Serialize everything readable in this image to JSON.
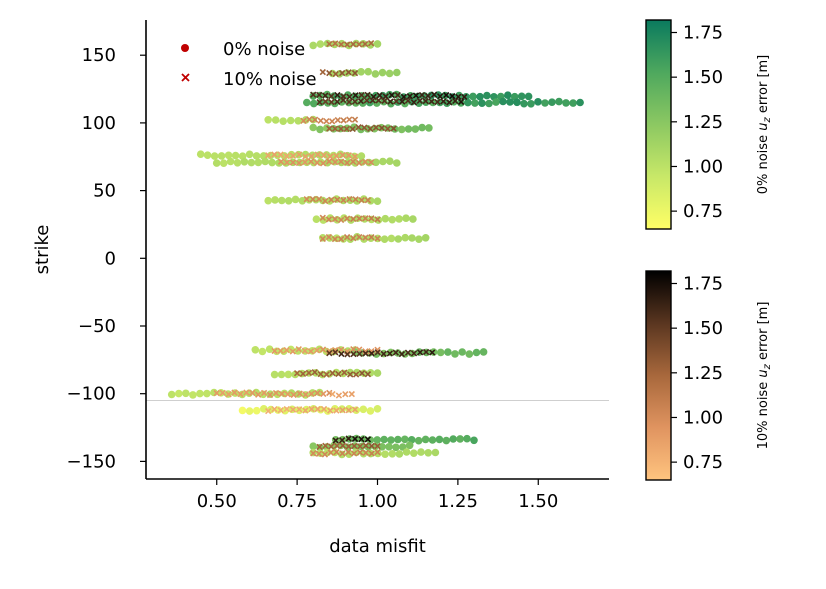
{
  "chart_data": {
    "type": "scatter",
    "xlabel": "data misfit",
    "ylabel": "strike",
    "xlim": [
      0.28,
      1.72
    ],
    "ylim": [
      -163,
      176
    ],
    "xticks": [
      0.5,
      0.75,
      1.0,
      1.25,
      1.5
    ],
    "xtick_labels": [
      "0.50",
      "0.75",
      "1.00",
      "1.25",
      "1.50"
    ],
    "yticks": [
      -150,
      -100,
      -50,
      0,
      50,
      100,
      150
    ],
    "ytick_labels": [
      "−150",
      "−100",
      "−50",
      "0",
      "50",
      "100",
      "150"
    ],
    "reference_line_y": -105,
    "grid": false,
    "legend": {
      "placement": "top-left",
      "entries": [
        {
          "label": "0% noise",
          "marker": "circle",
          "color": "#c00000"
        },
        {
          "label": "10% noise",
          "marker": "x",
          "color": "#c00000"
        }
      ]
    },
    "colorbars": [
      {
        "label": "0% noise  uz error [m]",
        "label_parts": [
          "0% noise  ",
          "u",
          "z",
          " error [m]"
        ],
        "colormap": "summer_r",
        "stops": [
          "#ffff66",
          "#c8e868",
          "#8cc862",
          "#4ea85e",
          "#0a7a5e"
        ],
        "vmin": 0.65,
        "vmax": 1.82,
        "ticks": [
          0.75,
          1.0,
          1.25,
          1.5,
          1.75
        ],
        "tick_labels": [
          "0.75",
          "1.00",
          "1.25",
          "1.50",
          "1.75"
        ]
      },
      {
        "label": "10% noise  uz error [m]",
        "label_parts": [
          "10% noise  ",
          "u",
          "z",
          " error [m]"
        ],
        "colormap": "copper_r",
        "stops": [
          "#ffc47f",
          "#e09460",
          "#a8683c",
          "#5a3620",
          "#000000"
        ],
        "vmin": 0.65,
        "vmax": 1.82,
        "ticks": [
          0.75,
          1.0,
          1.25,
          1.5,
          1.75
        ],
        "tick_labels": [
          "0.75",
          "1.00",
          "1.25",
          "1.50",
          "1.75"
        ]
      }
    ],
    "series": [
      {
        "name": "0% noise",
        "marker": "circle",
        "strikes": [
          {
            "strike": 158,
            "x_min": 0.8,
            "x_max": 1.0,
            "err_min": 1.05,
            "err_max": 1.15
          },
          {
            "strike": 137,
            "x_min": 0.86,
            "x_max": 1.06,
            "err_min": 1.08,
            "err_max": 1.22
          },
          {
            "strike": 120,
            "x_min": 0.8,
            "x_max": 1.47,
            "err_min": 1.45,
            "err_max": 1.75
          },
          {
            "strike": 115,
            "x_min": 0.78,
            "x_max": 1.63,
            "err_min": 1.35,
            "err_max": 1.78
          },
          {
            "strike": 102,
            "x_min": 0.66,
            "x_max": 0.8,
            "err_min": 1.0,
            "err_max": 1.08
          },
          {
            "strike": 96,
            "x_min": 0.8,
            "x_max": 1.16,
            "err_min": 1.2,
            "err_max": 1.4
          },
          {
            "strike": 76,
            "x_min": 0.45,
            "x_max": 0.95,
            "err_min": 0.98,
            "err_max": 1.08
          },
          {
            "strike": 71,
            "x_min": 0.5,
            "x_max": 1.06,
            "err_min": 1.0,
            "err_max": 1.12
          },
          {
            "strike": 43,
            "x_min": 0.66,
            "x_max": 1.0,
            "err_min": 1.0,
            "err_max": 1.1
          },
          {
            "strike": 29,
            "x_min": 0.81,
            "x_max": 1.11,
            "err_min": 1.0,
            "err_max": 1.1
          },
          {
            "strike": 15,
            "x_min": 0.83,
            "x_max": 1.15,
            "err_min": 1.0,
            "err_max": 1.12
          },
          {
            "strike": -68,
            "x_min": 0.62,
            "x_max": 0.93,
            "err_min": 0.95,
            "err_max": 1.05
          },
          {
            "strike": -70,
            "x_min": 0.93,
            "x_max": 1.33,
            "err_min": 1.25,
            "err_max": 1.45
          },
          {
            "strike": -85,
            "x_min": 0.68,
            "x_max": 1.0,
            "err_min": 1.0,
            "err_max": 1.1
          },
          {
            "strike": -100,
            "x_min": 0.36,
            "x_max": 0.82,
            "err_min": 0.95,
            "err_max": 1.08
          },
          {
            "strike": -112,
            "x_min": 0.58,
            "x_max": 1.0,
            "err_min": 0.7,
            "err_max": 0.95
          },
          {
            "strike": -134,
            "x_min": 0.87,
            "x_max": 1.3,
            "err_min": 1.3,
            "err_max": 1.55
          },
          {
            "strike": -139,
            "x_min": 0.8,
            "x_max": 1.1,
            "err_min": 1.2,
            "err_max": 1.35
          },
          {
            "strike": -144,
            "x_min": 0.8,
            "x_max": 1.18,
            "err_min": 1.0,
            "err_max": 1.1
          }
        ]
      },
      {
        "name": "10% noise",
        "marker": "x",
        "strikes": [
          {
            "strike": 158,
            "x_min": 0.85,
            "x_max": 0.98,
            "err_min": 1.1,
            "err_max": 1.3
          },
          {
            "strike": 137,
            "x_min": 0.83,
            "x_max": 0.93,
            "err_min": 1.25,
            "err_max": 1.4
          },
          {
            "strike": 120,
            "x_min": 0.8,
            "x_max": 1.27,
            "err_min": 1.5,
            "err_max": 1.8
          },
          {
            "strike": 116,
            "x_min": 0.82,
            "x_max": 1.26,
            "err_min": 1.45,
            "err_max": 1.75
          },
          {
            "strike": 102,
            "x_min": 0.77,
            "x_max": 0.93,
            "err_min": 1.0,
            "err_max": 1.1
          },
          {
            "strike": 96,
            "x_min": 0.85,
            "x_max": 1.05,
            "err_min": 1.25,
            "err_max": 1.4
          },
          {
            "strike": 76,
            "x_min": 0.66,
            "x_max": 0.93,
            "err_min": 0.8,
            "err_max": 0.95
          },
          {
            "strike": 71,
            "x_min": 0.7,
            "x_max": 0.98,
            "err_min": 0.9,
            "err_max": 1.05
          },
          {
            "strike": 43,
            "x_min": 0.78,
            "x_max": 0.97,
            "err_min": 1.0,
            "err_max": 1.1
          },
          {
            "strike": 29,
            "x_min": 0.83,
            "x_max": 1.0,
            "err_min": 1.0,
            "err_max": 1.12
          },
          {
            "strike": 15,
            "x_min": 0.83,
            "x_max": 1.0,
            "err_min": 1.0,
            "err_max": 1.1
          },
          {
            "strike": -68,
            "x_min": 0.68,
            "x_max": 1.0,
            "err_min": 0.85,
            "err_max": 1.0
          },
          {
            "strike": -70,
            "x_min": 0.85,
            "x_max": 1.17,
            "err_min": 1.5,
            "err_max": 1.7
          },
          {
            "strike": -85,
            "x_min": 0.75,
            "x_max": 0.97,
            "err_min": 1.2,
            "err_max": 1.35
          },
          {
            "strike": -100,
            "x_min": 0.5,
            "x_max": 0.85,
            "err_min": 0.85,
            "err_max": 1.0
          },
          {
            "strike": -101,
            "x_min": 0.86,
            "x_max": 0.92,
            "err_min": 0.8,
            "err_max": 0.9
          },
          {
            "strike": -112,
            "x_min": 0.66,
            "x_max": 0.93,
            "err_min": 0.75,
            "err_max": 0.9
          },
          {
            "strike": -134,
            "x_min": 0.87,
            "x_max": 0.97,
            "err_min": 1.6,
            "err_max": 1.8
          },
          {
            "strike": -139,
            "x_min": 0.82,
            "x_max": 1.0,
            "err_min": 1.2,
            "err_max": 1.35
          },
          {
            "strike": -144,
            "x_min": 0.8,
            "x_max": 1.0,
            "err_min": 1.0,
            "err_max": 1.1
          }
        ]
      }
    ]
  }
}
